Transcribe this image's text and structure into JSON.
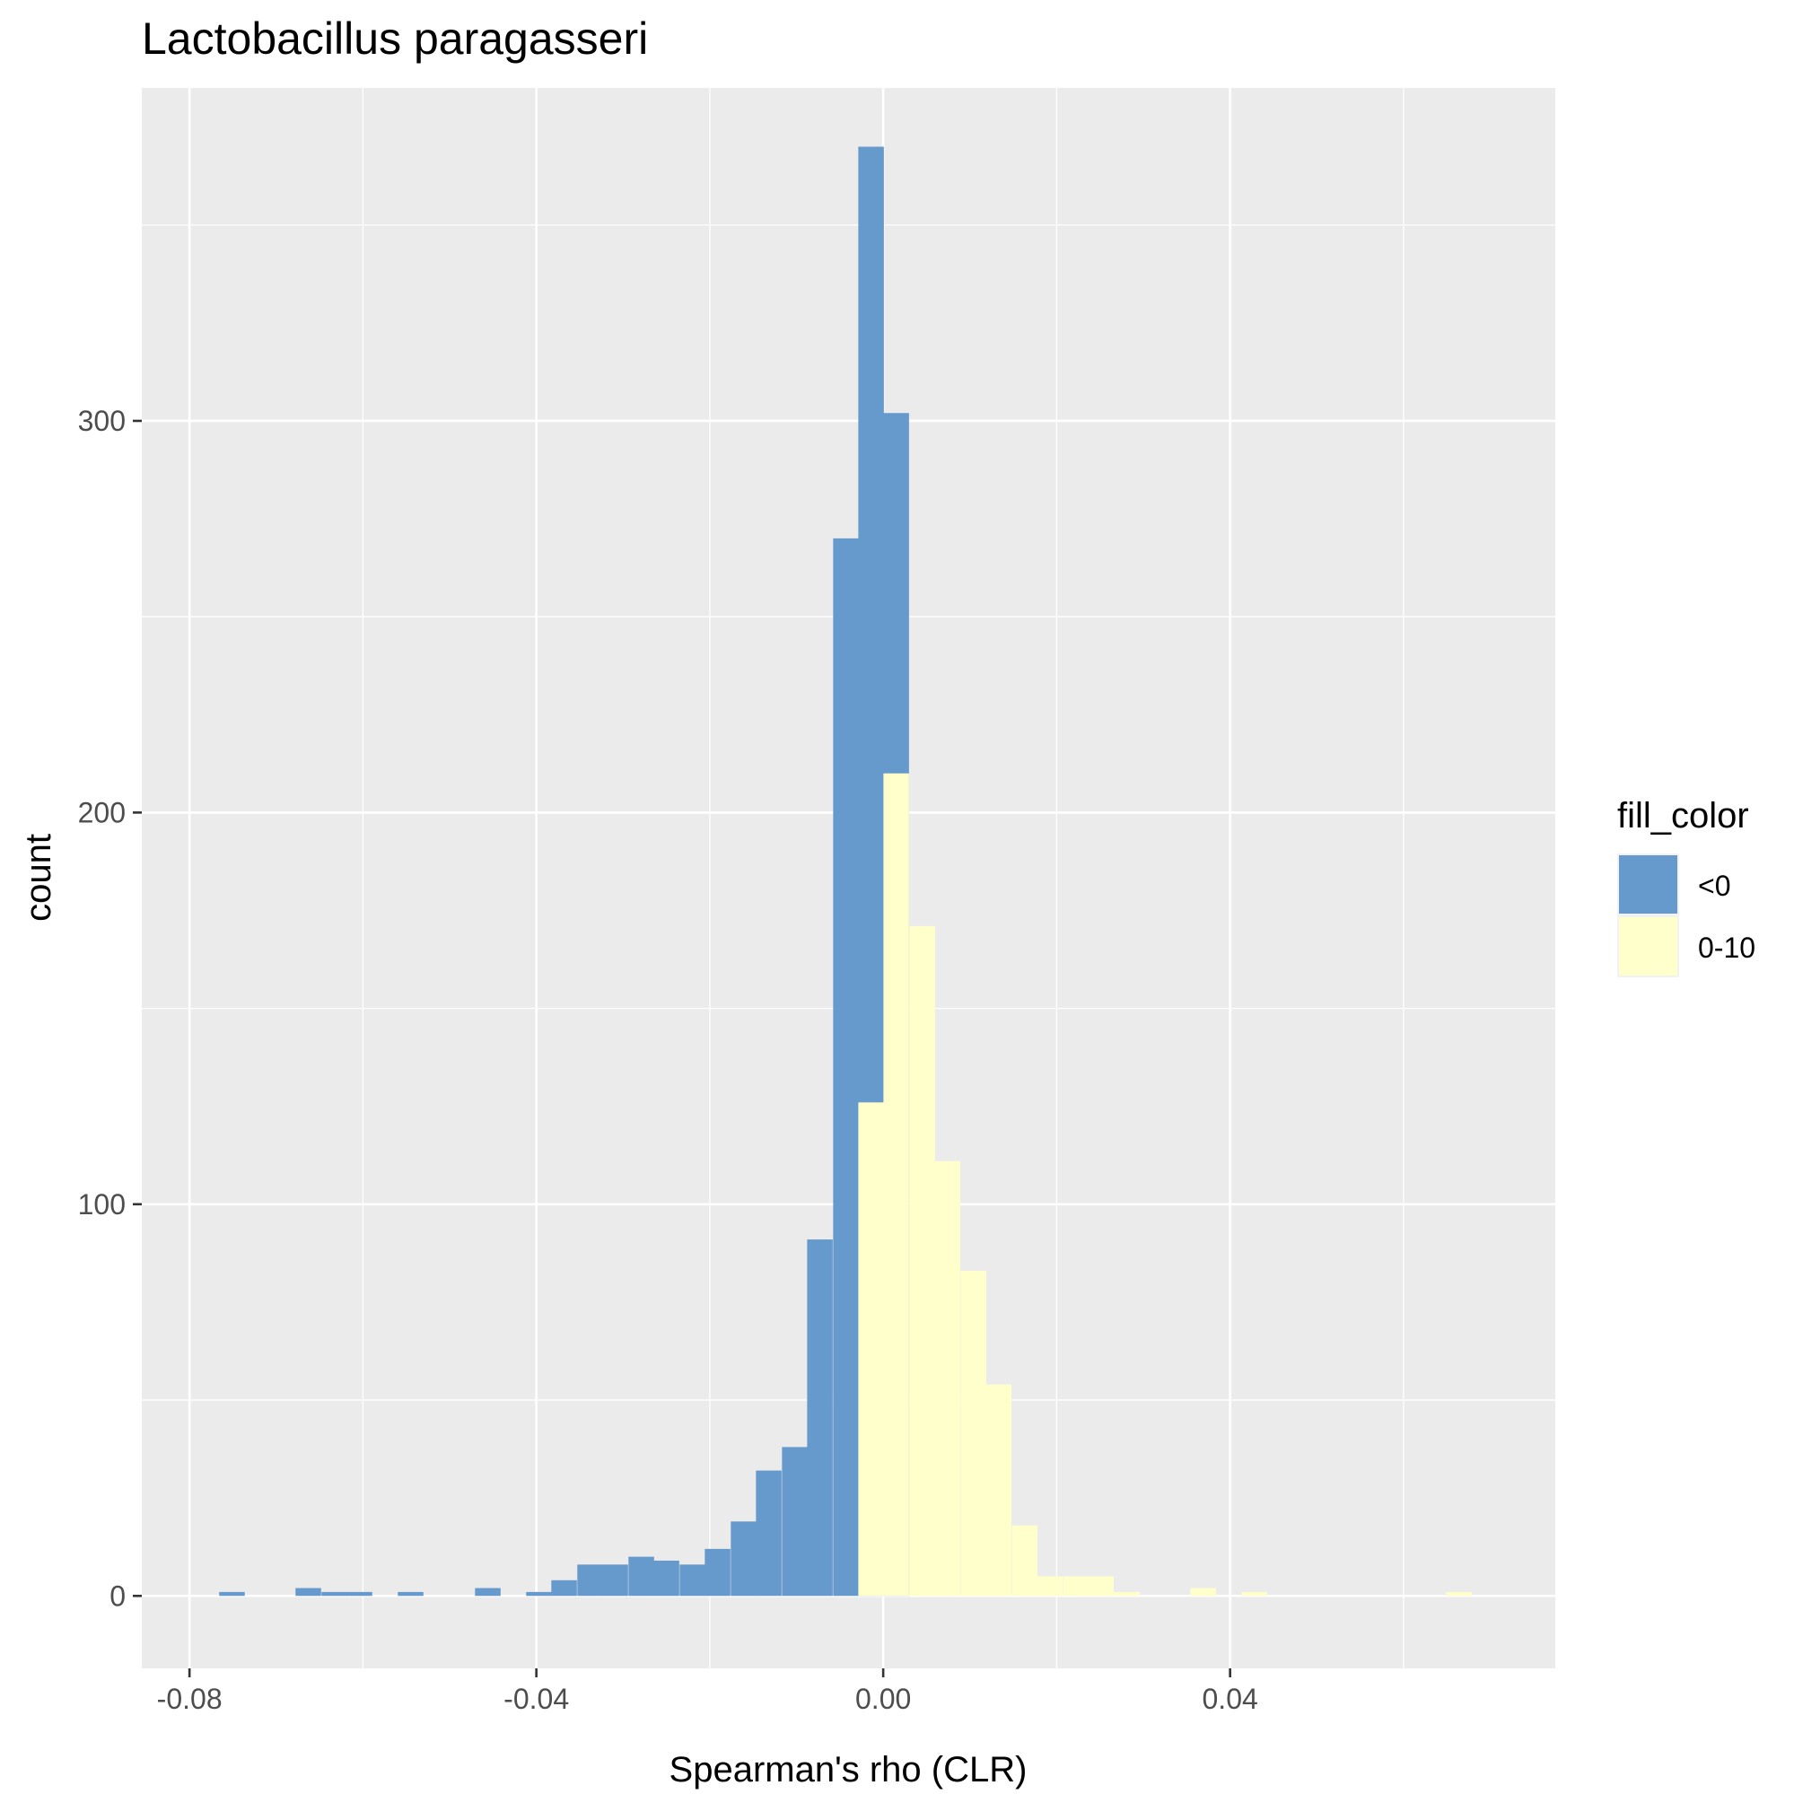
{
  "chart_data": {
    "type": "bar",
    "title": "Lactobacillus paragasseri",
    "xlabel": "Spearman's rho (CLR)",
    "ylabel": "count",
    "xlim": [
      -0.0855,
      0.0775
    ],
    "ylim": [
      -18.5,
      385
    ],
    "x_ticks": [
      -0.08,
      -0.04,
      0.0,
      0.04
    ],
    "x_tick_labels": [
      "-0.08",
      "-0.04",
      "0.00",
      "0.04"
    ],
    "x_minor_ticks": [
      -0.06,
      -0.02,
      0.02,
      0.06
    ],
    "y_ticks": [
      0,
      100,
      200,
      300
    ],
    "y_tick_labels": [
      "0",
      "100",
      "200",
      "300"
    ],
    "y_minor_ticks": [
      50,
      150,
      250,
      350
    ],
    "grid": true,
    "bin_width": 0.002948,
    "legend": {
      "title": "fill_color",
      "position": "right",
      "entries": [
        {
          "label": "<0",
          "color": "#6699CC"
        },
        {
          "label": "0-10",
          "color": "#FFFFCC"
        }
      ]
    },
    "series": [
      {
        "name": "<0",
        "color": "#6699CC",
        "bins": [
          {
            "x": -0.0751,
            "count": 1
          },
          {
            "x": -0.0663,
            "count": 2
          },
          {
            "x": -0.0633,
            "count": 1
          },
          {
            "x": -0.0604,
            "count": 1
          },
          {
            "x": -0.0545,
            "count": 1
          },
          {
            "x": -0.0456,
            "count": 2
          },
          {
            "x": -0.0397,
            "count": 1
          },
          {
            "x": -0.0368,
            "count": 4
          },
          {
            "x": -0.0338,
            "count": 8
          },
          {
            "x": -0.0309,
            "count": 8
          },
          {
            "x": -0.0279,
            "count": 10
          },
          {
            "x": -0.025,
            "count": 9
          },
          {
            "x": -0.022,
            "count": 8
          },
          {
            "x": -0.0191,
            "count": 12
          },
          {
            "x": -0.0161,
            "count": 19
          },
          {
            "x": -0.0132,
            "count": 32
          },
          {
            "x": -0.0102,
            "count": 38
          },
          {
            "x": -0.0073,
            "count": 91
          },
          {
            "x": -0.0043,
            "count": 270
          },
          {
            "x": -0.0014,
            "count": 370
          },
          {
            "x": 0.0015,
            "count": 302
          }
        ]
      },
      {
        "name": "0-10",
        "color": "#FFFFCC",
        "bins": [
          {
            "x": -0.0014,
            "count": 126
          },
          {
            "x": 0.0015,
            "count": 210
          },
          {
            "x": 0.0045,
            "count": 171
          },
          {
            "x": 0.0074,
            "count": 111
          },
          {
            "x": 0.0104,
            "count": 83
          },
          {
            "x": 0.0133,
            "count": 54
          },
          {
            "x": 0.0163,
            "count": 18
          },
          {
            "x": 0.0192,
            "count": 5
          },
          {
            "x": 0.0222,
            "count": 5
          },
          {
            "x": 0.0251,
            "count": 5
          },
          {
            "x": 0.0281,
            "count": 1
          },
          {
            "x": 0.0369,
            "count": 2
          },
          {
            "x": 0.0428,
            "count": 1
          },
          {
            "x": 0.0664,
            "count": 1
          }
        ]
      }
    ]
  }
}
